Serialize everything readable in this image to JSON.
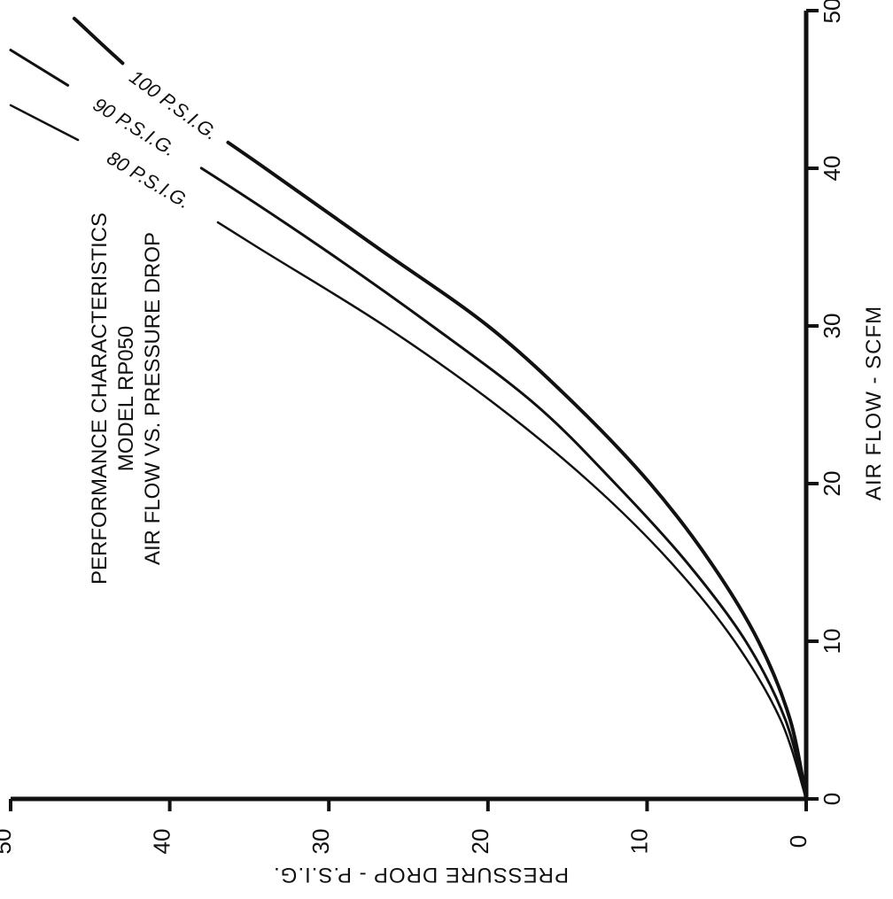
{
  "chart_data": {
    "type": "line",
    "title_lines": [
      "PERFORMANCE CHARACTERISTICS",
      "MODEL RP050",
      "AIR FLOW VS. PRESSURE DROP"
    ],
    "xlabel": "AIR FLOW - SCFM",
    "ylabel": "PRESSURE DROP - P.S.I.G.",
    "xlim": [
      0,
      50
    ],
    "ylim": [
      0,
      50
    ],
    "x_ticks": [
      "0",
      "10",
      "20",
      "30",
      "40",
      "50"
    ],
    "y_ticks": [
      "0",
      "10",
      "20",
      "30",
      "40",
      "50"
    ],
    "grid": false,
    "series": [
      {
        "name": "80 P.S.I.G.",
        "x": [
          0,
          5,
          10,
          15,
          20,
          25,
          30,
          35,
          40,
          44
        ],
        "y": [
          0,
          1.6,
          4.5,
          8.5,
          13.5,
          19.5,
          26.5,
          34.5,
          42.5,
          50
        ]
      },
      {
        "name": "90 P.S.I.G.",
        "x": [
          0,
          5,
          10,
          15,
          20,
          25,
          30,
          35,
          40,
          47.5
        ],
        "y": [
          0,
          1.3,
          3.8,
          7.5,
          12,
          17,
          23.5,
          30.5,
          38,
          50
        ]
      },
      {
        "name": "100 P.S.I.G.",
        "x": [
          0,
          5,
          10,
          15,
          20,
          25,
          30,
          35,
          40,
          45,
          49.5
        ],
        "y": [
          0,
          1.0,
          3.0,
          6.0,
          9.8,
          14.5,
          20,
          27,
          34,
          41,
          46
        ]
      }
    ]
  }
}
